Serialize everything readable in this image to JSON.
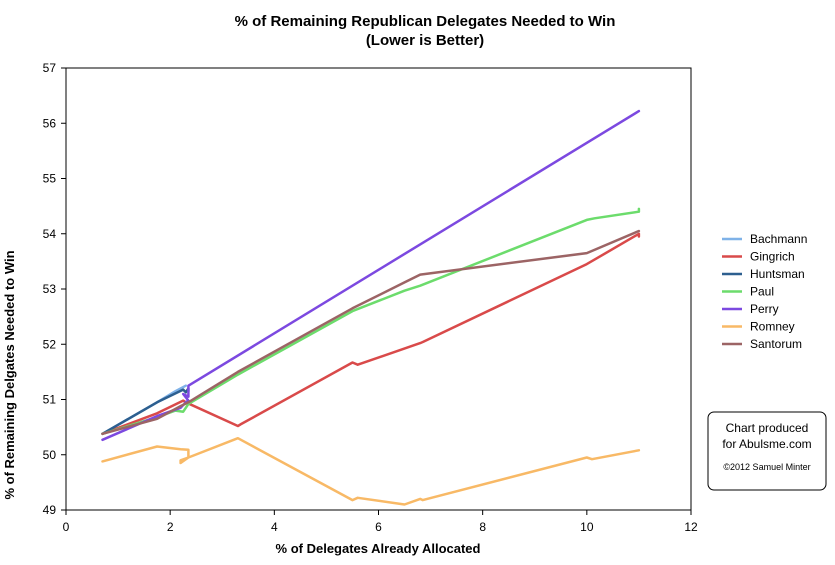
{
  "chart_data": {
    "type": "line",
    "title": "% of Remaining Republican Delegates Needed to Win",
    "subtitle": "(Lower is Better)",
    "xlabel": "% of Delegates Already Allocated",
    "ylabel": "% of Remaining Delgates Needed to Win",
    "xlim": [
      0,
      12
    ],
    "ylim": [
      49,
      57
    ],
    "x_ticks": [
      "0",
      "2",
      "4",
      "6",
      "8",
      "10",
      "12"
    ],
    "y_ticks": [
      "49",
      "50",
      "51",
      "52",
      "53",
      "54",
      "55",
      "56",
      "57"
    ],
    "grid": false,
    "legend_position": "right",
    "series": [
      {
        "name": "Bachmann",
        "color": "#7fb2e8",
        "x": [
          0.7,
          1.75,
          2.1,
          2.3
        ],
        "y": [
          50.38,
          50.95,
          51.15,
          51.25
        ]
      },
      {
        "name": "Gingrich",
        "color": "#d94a4a",
        "x": [
          0.7,
          1.75,
          2.25,
          2.3,
          3.3,
          3.35,
          5.5,
          5.6,
          6.8,
          6.85,
          10.0,
          11.0,
          11.0
        ],
        "y": [
          50.38,
          50.75,
          50.98,
          50.95,
          50.52,
          50.55,
          51.67,
          51.63,
          52.02,
          52.04,
          53.45,
          54.0,
          53.95
        ]
      },
      {
        "name": "Huntsman",
        "color": "#2d5f8f",
        "x": [
          0.7,
          1.75,
          2.25,
          2.3,
          2.35,
          2.35
        ],
        "y": [
          50.38,
          50.95,
          51.18,
          51.13,
          51.2,
          51.15
        ]
      },
      {
        "name": "Paul",
        "color": "#6cdc6c",
        "x": [
          0.7,
          1.75,
          2.1,
          2.25,
          2.35,
          3.3,
          5.5,
          6.5,
          6.8,
          10.0,
          10.15,
          11.0,
          11.0
        ],
        "y": [
          50.38,
          50.68,
          50.8,
          50.78,
          50.92,
          51.45,
          52.6,
          52.97,
          53.06,
          54.25,
          54.28,
          54.4,
          54.45
        ]
      },
      {
        "name": "Perry",
        "color": "#7c49e0",
        "x": [
          0.7,
          1.75,
          2.2,
          2.3,
          2.35,
          2.25,
          2.35,
          2.35,
          11.0
        ],
        "y": [
          50.27,
          50.7,
          50.85,
          50.95,
          50.98,
          51.1,
          51.05,
          51.25,
          56.22
        ]
      },
      {
        "name": "Romney",
        "color": "#f8b966",
        "x": [
          0.7,
          1.75,
          2.2,
          2.35,
          2.35,
          2.2,
          2.2,
          2.35,
          3.3,
          5.5,
          5.6,
          6.5,
          6.8,
          6.85,
          10.0,
          10.1,
          11.0
        ],
        "y": [
          49.88,
          50.15,
          50.1,
          50.09,
          49.95,
          49.9,
          49.85,
          49.95,
          50.3,
          49.18,
          49.22,
          49.1,
          49.2,
          49.18,
          49.95,
          49.92,
          50.08
        ]
      },
      {
        "name": "Santorum",
        "color": "#9c6465",
        "x": [
          0.7,
          1.75,
          2.2,
          2.35,
          3.3,
          5.5,
          6.5,
          6.8,
          10.0,
          11.0
        ],
        "y": [
          50.38,
          50.65,
          50.88,
          50.95,
          51.5,
          52.65,
          53.12,
          53.26,
          53.65,
          54.05
        ]
      }
    ]
  },
  "credit": {
    "line1": "Chart produced",
    "line2": "for Abulsme.com",
    "line3": "©2012 Samuel Minter"
  }
}
